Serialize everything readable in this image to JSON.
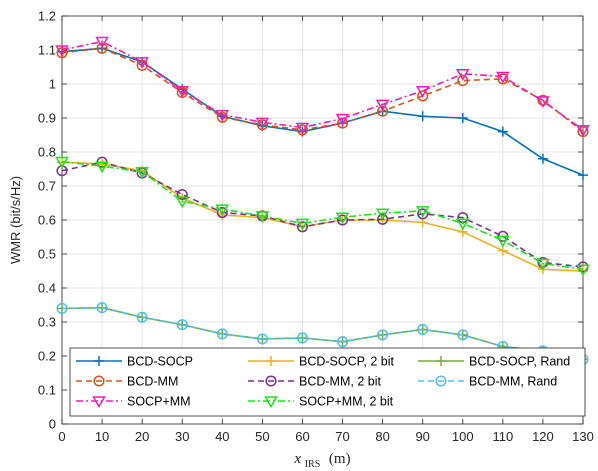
{
  "chart_data": {
    "type": "line",
    "ylabel": "WMR (bit/s/Hz)",
    "xlabel_main": "x",
    "xlabel_sub": "IRS",
    "xlabel_unit": "(m)",
    "xlim": [
      0,
      130
    ],
    "ylim": [
      0,
      1.2
    ],
    "x": [
      0,
      10,
      20,
      30,
      40,
      50,
      60,
      70,
      80,
      90,
      100,
      110,
      120,
      130
    ],
    "xticks": [
      "0",
      "10",
      "20",
      "30",
      "40",
      "50",
      "60",
      "70",
      "80",
      "90",
      "100",
      "110",
      "120",
      "130"
    ],
    "yticks": [
      "0",
      "0.1",
      "0.2",
      "0.3",
      "0.4",
      "0.5",
      "0.6",
      "0.7",
      "0.8",
      "0.9",
      "1",
      "1.1",
      "1.2"
    ],
    "grid": true,
    "legend_position": "bottom",
    "series": [
      {
        "name": "BCD-SOCP",
        "color": "#0072BD",
        "marker": "plus",
        "dash": "solid",
        "values": [
          1.095,
          1.105,
          1.065,
          0.985,
          0.905,
          0.877,
          0.86,
          0.885,
          0.92,
          0.905,
          0.9,
          0.86,
          0.78,
          0.732
        ]
      },
      {
        "name": "BCD-MM",
        "color": "#D95319",
        "marker": "circle",
        "dash": "dashed",
        "values": [
          1.092,
          1.105,
          1.055,
          0.975,
          0.902,
          0.88,
          0.865,
          0.885,
          0.92,
          0.965,
          1.01,
          1.015,
          0.952,
          0.86
        ]
      },
      {
        "name": "SOCP+MM",
        "color": "#EE1FB6",
        "marker": "triangle-down",
        "dash": "dashdot",
        "values": [
          1.1,
          1.125,
          1.065,
          0.98,
          0.91,
          0.887,
          0.872,
          0.898,
          0.94,
          0.98,
          1.03,
          1.022,
          0.95,
          0.865
        ]
      },
      {
        "name": "BCD-SOCP, 2 bit",
        "color": "#EDB120",
        "marker": "plus",
        "dash": "solid",
        "values": [
          0.77,
          0.765,
          0.745,
          0.665,
          0.615,
          0.607,
          0.58,
          0.6,
          0.6,
          0.593,
          0.565,
          0.51,
          0.455,
          0.45
        ]
      },
      {
        "name": "BCD-MM, 2 bit",
        "color": "#7E2F8E",
        "marker": "circle",
        "dash": "dashed",
        "values": [
          0.745,
          0.77,
          0.738,
          0.675,
          0.622,
          0.612,
          0.58,
          0.6,
          0.602,
          0.618,
          0.607,
          0.552,
          0.475,
          0.462
        ]
      },
      {
        "name": "SOCP+MM, 2 bit",
        "color": "#1FE01F",
        "marker": "triangle-down",
        "dash": "dashdot",
        "values": [
          0.772,
          0.758,
          0.742,
          0.655,
          0.632,
          0.612,
          0.59,
          0.608,
          0.62,
          0.627,
          0.59,
          0.54,
          0.472,
          0.455
        ]
      },
      {
        "name": "BCD-SOCP, Rand",
        "color": "#77AC30",
        "marker": "plus",
        "dash": "solid",
        "values": [
          0.34,
          0.342,
          0.314,
          0.292,
          0.265,
          0.25,
          0.253,
          0.242,
          0.262,
          0.278,
          0.262,
          0.228,
          0.215,
          0.19
        ]
      },
      {
        "name": "BCD-MM, Rand",
        "color": "#4DBEEE",
        "marker": "circle",
        "dash": "dashed",
        "values": [
          0.34,
          0.342,
          0.314,
          0.292,
          0.265,
          0.25,
          0.253,
          0.242,
          0.262,
          0.278,
          0.262,
          0.228,
          0.215,
          0.19
        ]
      }
    ]
  }
}
